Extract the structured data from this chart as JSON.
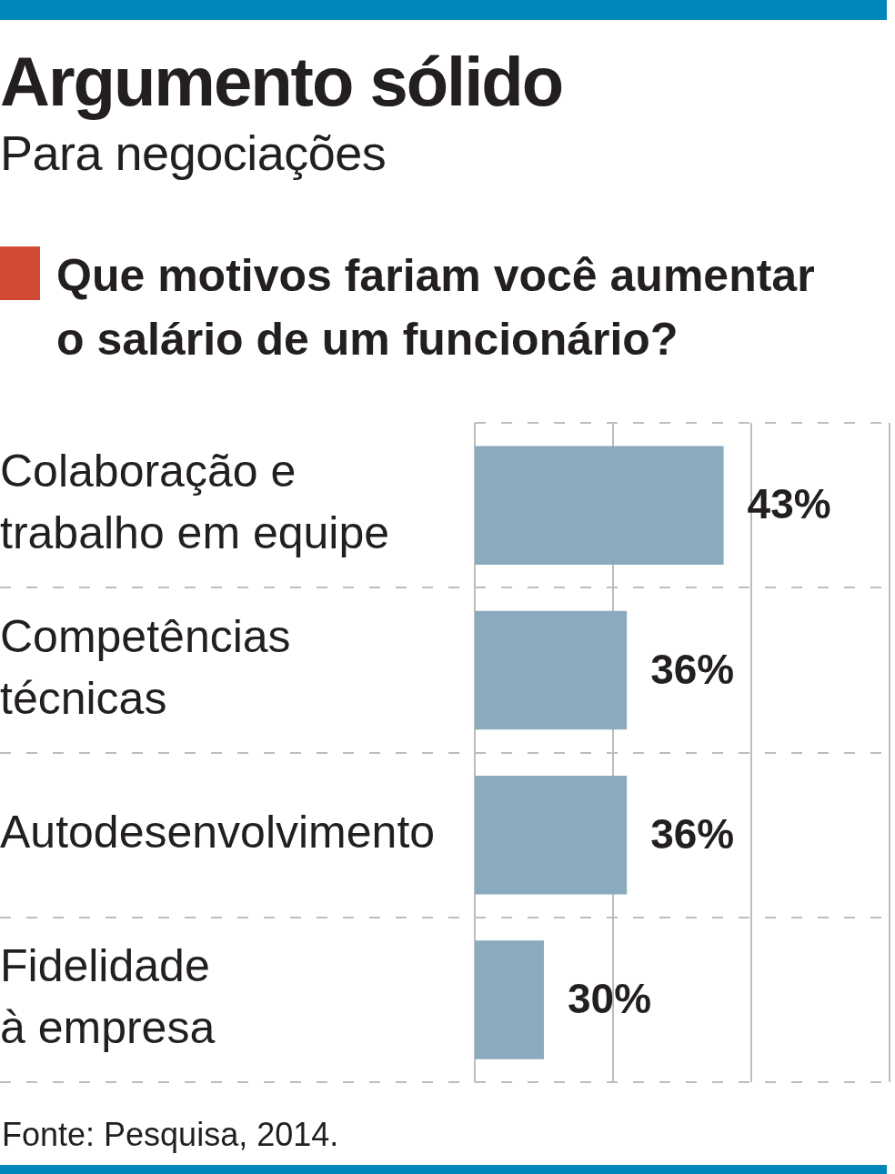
{
  "chart_data": {
    "type": "bar",
    "orientation": "horizontal",
    "title": "Argumento sólido",
    "subtitle": "Para negociações",
    "annotations": [
      "Que motivos fariam você aumentar o salário de um funcionário?",
      "Fonte: Pesquisa, 2014."
    ],
    "categories": [
      "Colaboração e trabalho em equipe",
      "Competências técnicas",
      "Autodesenvolvimento",
      "Fidelidade à empresa"
    ],
    "values": [
      43,
      36,
      36,
      30
    ],
    "value_labels": [
      "43%",
      "36%",
      "36%",
      "30%"
    ],
    "color": "#8aabbd",
    "xlim": [
      25,
      55
    ],
    "xticks": [
      {
        "value": 25,
        "label": null
      },
      {
        "value": 35,
        "label": null
      },
      {
        "value": 45,
        "label": null
      },
      {
        "value": 55,
        "label": null
      }
    ],
    "grid": true,
    "tick_labels": "y"
  }
}
